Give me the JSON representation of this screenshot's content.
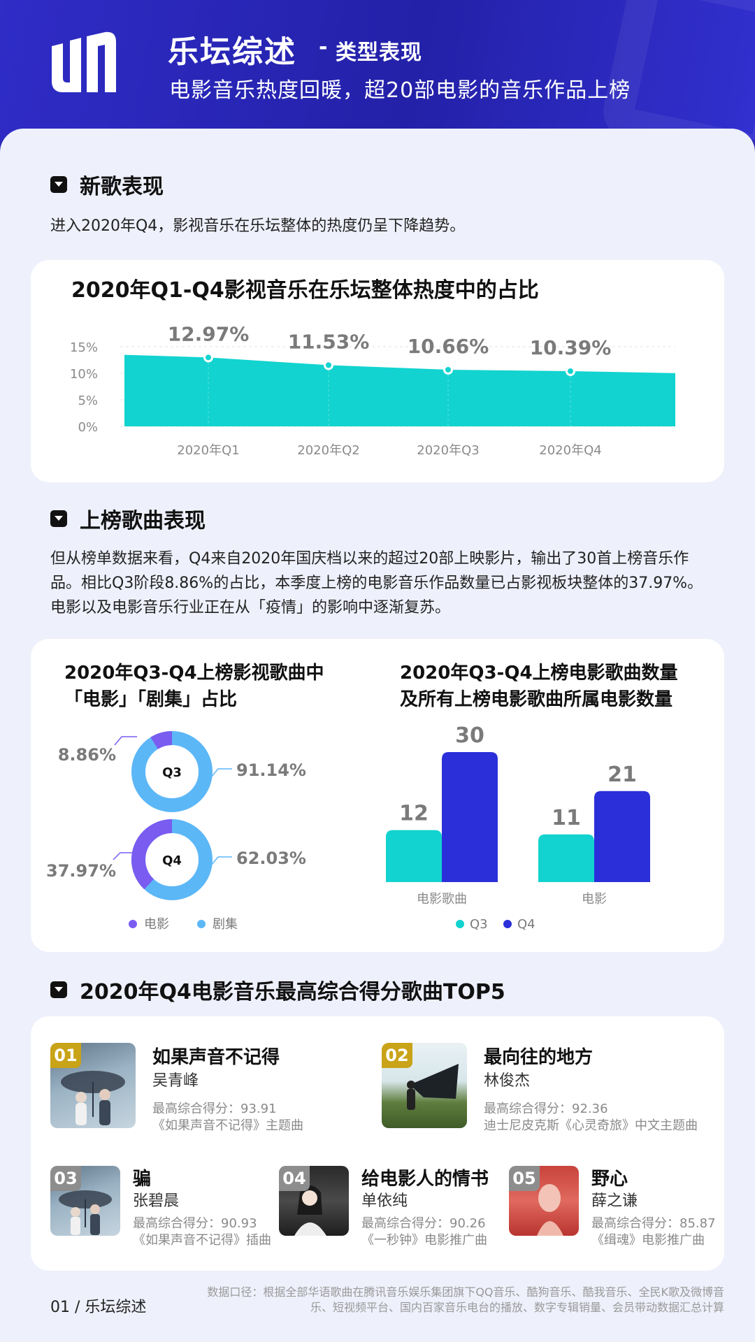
{
  "header": {
    "title_main": "乐坛综述",
    "title_sep": "-",
    "title_sub": "类型表现",
    "subtitle": "电影音乐热度回暖，超20部电影的音乐作品上榜"
  },
  "section1": {
    "title": "新歌表现",
    "text": "进入2020年Q4，影视音乐在乐坛整体的热度仍呈下降趋势。"
  },
  "section2": {
    "title": "上榜歌曲表现",
    "text": "但从榜单数据来看，Q4来自2020年国庆档以来的超过20部上映影片，输出了30首上榜音乐作品。相比Q3阶段8.86%的占比，本季度上榜的电影音乐作品数量已占影视板块整体的37.97%。电影以及电影音乐行业正在从「疫情」的影响中逐渐复苏。"
  },
  "section3": {
    "title": "2020年Q4电影音乐最高综合得分歌曲TOP5"
  },
  "colors": {
    "brand": "#2d2bb8",
    "teal": "#12d3cf",
    "movie_purple": "#7a5cf0",
    "series_blue": "#5cb7f7",
    "q4_blue": "#2b2fd9",
    "rank_gold": "#c9a318",
    "rank_gray": "#8d8d8d"
  },
  "chart_data": [
    {
      "type": "area",
      "title": "2020年Q1-Q4影视音乐在乐坛整体热度中的占比",
      "categories": [
        "2020年Q1",
        "2020年Q2",
        "2020年Q3",
        "2020年Q4"
      ],
      "values": [
        12.97,
        11.53,
        10.66,
        10.39
      ],
      "value_labels": [
        "12.97%",
        "11.53%",
        "10.66%",
        "10.39%"
      ],
      "yticks": [
        "0%",
        "5%",
        "10%",
        "15%"
      ],
      "ylim": [
        0,
        15
      ],
      "grid": true
    },
    {
      "type": "pie",
      "title_line1": "2020年Q3-Q4上榜影视歌曲中",
      "title_line2": "「电影」「剧集」占比",
      "legend": [
        "电影",
        "剧集"
      ],
      "rings": [
        {
          "label": "Q3",
          "movie": 8.86,
          "series": 91.14,
          "movie_label": "8.86%",
          "series_label": "91.14%"
        },
        {
          "label": "Q4",
          "movie": 37.97,
          "series": 62.03,
          "movie_label": "37.97%",
          "series_label": "62.03%"
        }
      ]
    },
    {
      "type": "bar",
      "title_line1": "2020年Q3-Q4上榜电影歌曲数量",
      "title_line2": "及所有上榜电影歌曲所属电影数量",
      "categories": [
        "电影歌曲",
        "电影"
      ],
      "series": [
        {
          "name": "Q3",
          "values": [
            12,
            11
          ]
        },
        {
          "name": "Q4",
          "values": [
            30,
            21
          ]
        }
      ],
      "ylim": [
        0,
        30
      ]
    }
  ],
  "top5": [
    {
      "rank": "01",
      "title": "如果声音不记得",
      "artist": "吴青峰",
      "score": "最高综合得分：93.91",
      "note": "《如果声音不记得》主题曲"
    },
    {
      "rank": "02",
      "title": "最向往的地方",
      "artist": "林俊杰",
      "score": "最高综合得分：92.36",
      "note": "迪士尼皮克斯《心灵奇旅》中文主题曲"
    },
    {
      "rank": "03",
      "title": "骗",
      "artist": "张碧晨",
      "score": "最高综合得分：90.93",
      "note": "《如果声音不记得》插曲"
    },
    {
      "rank": "04",
      "title": "给电影人的情书",
      "artist": "单依纯",
      "score": "最高综合得分：90.26",
      "note": "《一秒钟》电影推广曲"
    },
    {
      "rank": "05",
      "title": "野心",
      "artist": "薛之谦",
      "score": "最高综合得分：85.87",
      "note": "《缉魂》电影推广曲"
    }
  ],
  "footer": {
    "page": "01 / 乐坛综述",
    "source": "数据口径：根据全部华语歌曲在腾讯音乐娱乐集团旗下QQ音乐、酷狗音乐、酷我音乐、全民K歌及微博音乐、短视频平台、国内百家音乐电台的播放、数字专辑销量、会员带动数据汇总计算"
  }
}
